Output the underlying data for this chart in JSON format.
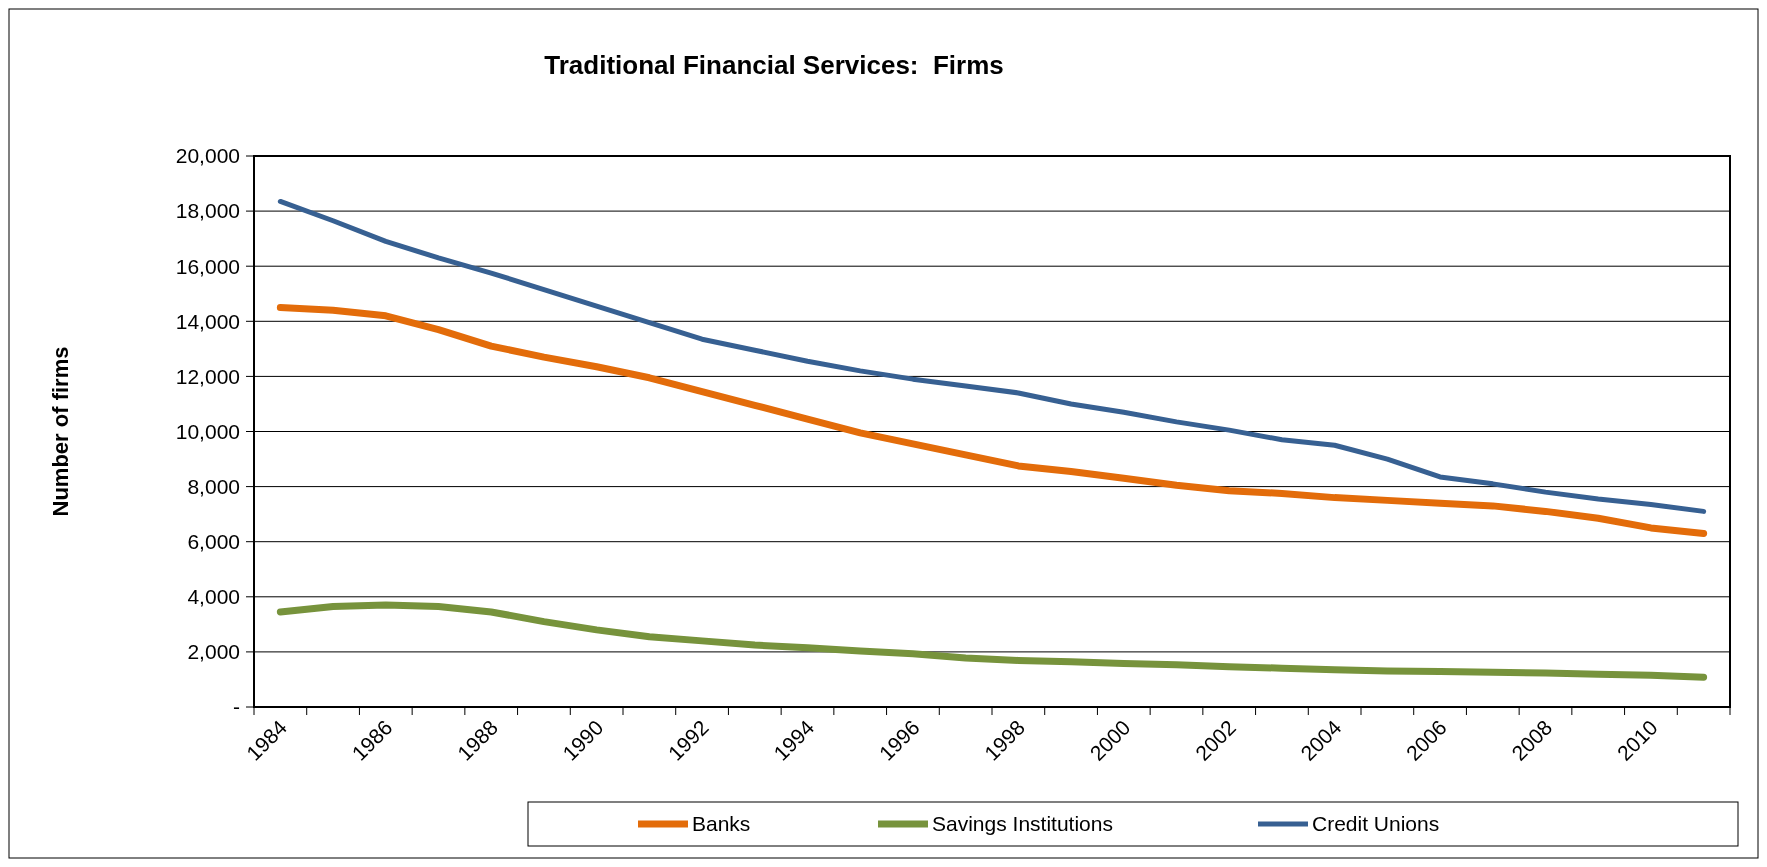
{
  "chart_data": {
    "type": "line",
    "title": "Traditional Financial Services:  Firms",
    "ylabel": "Number of firms",
    "categories": [
      "1984",
      null,
      "1986",
      null,
      "1988",
      null,
      "1990",
      null,
      "1992",
      null,
      "1994",
      null,
      "1996",
      null,
      "1998",
      null,
      "2000",
      null,
      "2002",
      null,
      "2004",
      null,
      "2006",
      null,
      "2008",
      null,
      "2010",
      null
    ],
    "series": [
      {
        "name": "Banks",
        "color": "#e36c0a",
        "values": [
          14500,
          14400,
          14200,
          13700,
          13100,
          12700,
          12350,
          11950,
          11450,
          10950,
          10450,
          9950,
          9550,
          9150,
          8750,
          8550,
          8300,
          8050,
          7850,
          7750,
          7600,
          7500,
          7400,
          7300,
          7100,
          6850,
          6500,
          6300
        ]
      },
      {
        "name": "Savings Institutions",
        "color": "#77933c",
        "values": [
          3450,
          3650,
          3700,
          3650,
          3450,
          3100,
          2800,
          2550,
          2400,
          2250,
          2150,
          2030,
          1930,
          1780,
          1690,
          1640,
          1580,
          1530,
          1460,
          1410,
          1350,
          1310,
          1290,
          1260,
          1230,
          1190,
          1150,
          1080
        ]
      },
      {
        "name": "Credit Unions",
        "color": "#376092",
        "values": [
          18350,
          17650,
          16900,
          16300,
          15750,
          15150,
          14550,
          13950,
          13350,
          12950,
          12550,
          12200,
          11900,
          11650,
          11400,
          11000,
          10700,
          10350,
          10050,
          9700,
          9500,
          9000,
          8350,
          8100,
          7800,
          7550,
          7350,
          7100
        ]
      }
    ],
    "ylim": [
      0,
      20000
    ],
    "yticks": [
      {
        "value": 0,
        "label": "-"
      },
      {
        "value": 2000,
        "label": "2,000"
      },
      {
        "value": 4000,
        "label": "4,000"
      },
      {
        "value": 6000,
        "label": "6,000"
      },
      {
        "value": 8000,
        "label": "8,000"
      },
      {
        "value": 10000,
        "label": "10,000"
      },
      {
        "value": 12000,
        "label": "12,000"
      },
      {
        "value": 14000,
        "label": "14,000"
      },
      {
        "value": 16000,
        "label": "16,000"
      },
      {
        "value": 18000,
        "label": "18,000"
      },
      {
        "value": 20000,
        "label": "20,000"
      }
    ],
    "grid": "y",
    "legend": "bottom",
    "marker": "none",
    "line_style": "solid"
  }
}
